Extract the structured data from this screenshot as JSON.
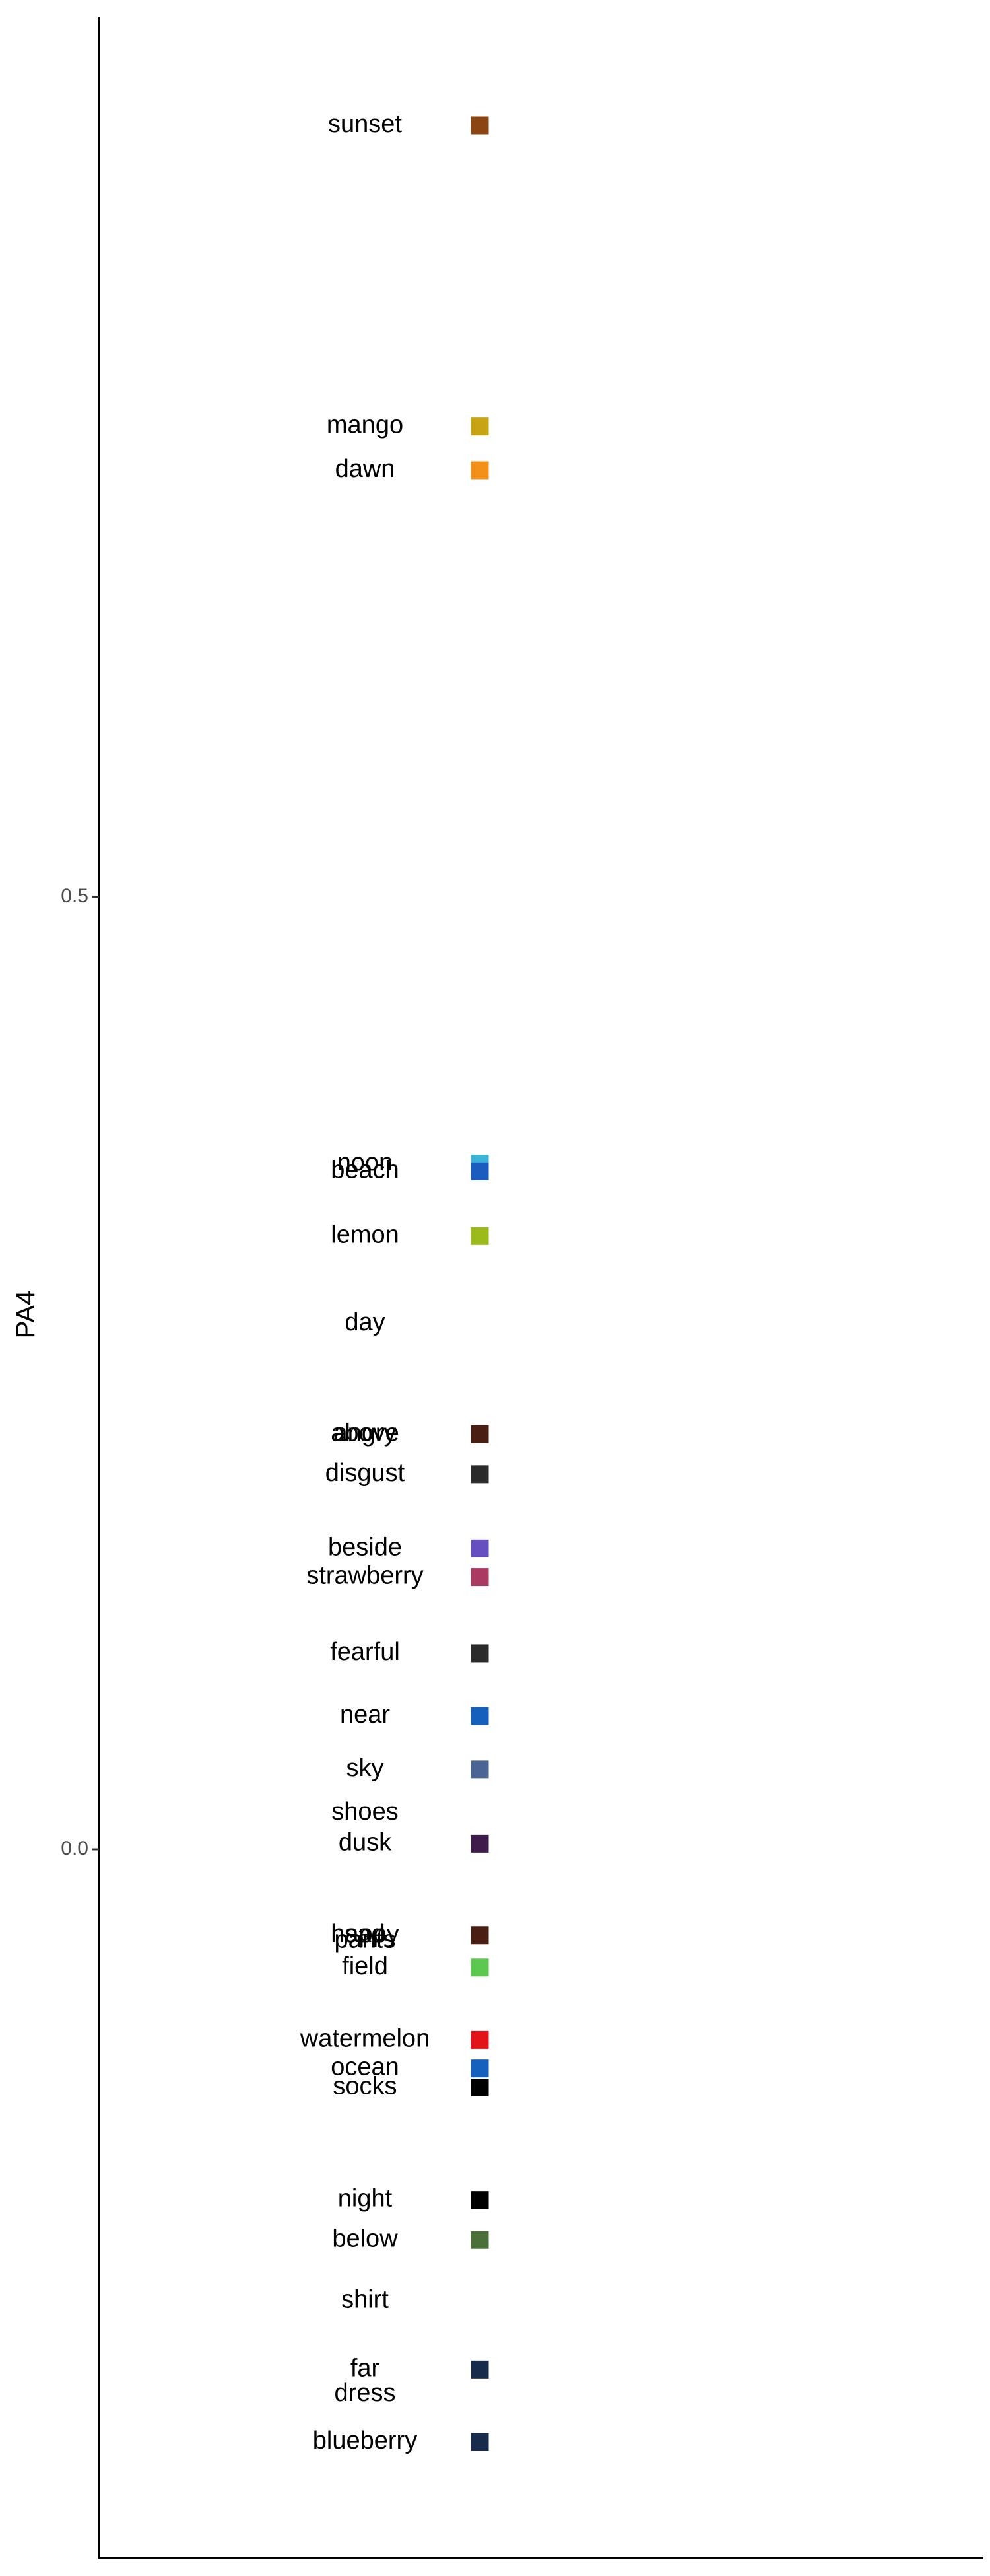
{
  "chart_data": {
    "type": "scatter",
    "title": "",
    "xlabel": "",
    "ylabel": "PA4",
    "ylim": [
      -0.392,
      0.965
    ],
    "yticks": [
      0.0,
      0.5
    ],
    "ytick_labels": [
      "0.0",
      "0.5"
    ],
    "grid": false,
    "legend": "none",
    "points": [
      {
        "label": "sunset",
        "y": 0.905,
        "color": "#8B4513"
      },
      {
        "label": "mango",
        "y": 0.747,
        "color": "#C8A415"
      },
      {
        "label": "dawn",
        "y": 0.724,
        "color": "#F39019"
      },
      {
        "label": "noon",
        "y": 0.36,
        "color": "#3CB4D8"
      },
      {
        "label": "beach",
        "y": 0.356,
        "color": "#1A5DBF"
      },
      {
        "label": "lemon",
        "y": 0.322,
        "color": "#9BBA1C"
      },
      {
        "label": "day",
        "y": 0.276,
        "color": null
      },
      {
        "label": "angry",
        "y": 0.218,
        "color": "#4A1E12"
      },
      {
        "label": "above",
        "y": 0.218,
        "color": null
      },
      {
        "label": "disgust",
        "y": 0.197,
        "color": "#2B2B2B"
      },
      {
        "label": "beside",
        "y": 0.158,
        "color": "#6650C0"
      },
      {
        "label": "strawberry",
        "y": 0.143,
        "color": "#AA3A62"
      },
      {
        "label": "fearful",
        "y": 0.103,
        "color": "#2B2B2B"
      },
      {
        "label": "near",
        "y": 0.07,
        "color": "#1560BD"
      },
      {
        "label": "sky",
        "y": 0.042,
        "color": "#4A6494"
      },
      {
        "label": "shoes",
        "y": 0.019,
        "color": null
      },
      {
        "label": "dusk",
        "y": 0.003,
        "color": "#3D1B4A"
      },
      {
        "label": "happy",
        "y": -0.045,
        "color": "#4A1E12"
      },
      {
        "label": "sad",
        "y": -0.045,
        "color": null
      },
      {
        "label": "pants",
        "y": -0.048,
        "color": null
      },
      {
        "label": "field",
        "y": -0.062,
        "color": "#5DC850"
      },
      {
        "label": "watermelon",
        "y": -0.1,
        "color": "#E2141A"
      },
      {
        "label": "ocean",
        "y": -0.115,
        "color": "#1560BD"
      },
      {
        "label": "socks",
        "y": -0.125,
        "color": "#000000"
      },
      {
        "label": "night",
        "y": -0.184,
        "color": "#000000"
      },
      {
        "label": "below",
        "y": -0.205,
        "color": "#4A7038"
      },
      {
        "label": "shirt",
        "y": -0.237,
        "color": null
      },
      {
        "label": "far",
        "y": -0.273,
        "color": "#172B4D"
      },
      {
        "label": "dress",
        "y": -0.286,
        "color": null
      },
      {
        "label": "blueberry",
        "y": -0.311,
        "color": "#172B4D"
      }
    ]
  }
}
